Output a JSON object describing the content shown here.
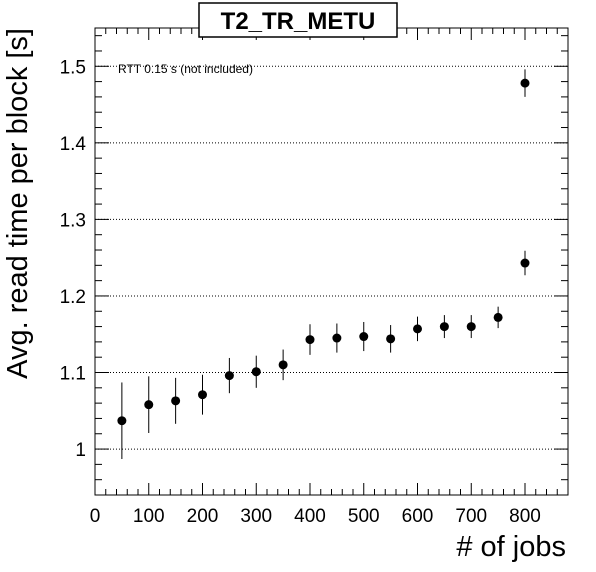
{
  "chart_data": {
    "type": "scatter",
    "title": "T2_TR_METU",
    "xlabel": "# of jobs",
    "ylabel": "Avg. read time per block [s]",
    "annotation": "RTT 0.15 s (not included)",
    "xlim": [
      0,
      880
    ],
    "ylim": [
      0.94,
      1.55
    ],
    "x_ticks": [
      0,
      100,
      200,
      300,
      400,
      500,
      600,
      700,
      800
    ],
    "y_ticks": [
      1.0,
      1.1,
      1.2,
      1.3,
      1.4,
      1.5
    ],
    "y_tick_labels": [
      "1",
      "1.1",
      "1.2",
      "1.3",
      "1.4",
      "1.5"
    ],
    "grid": "horizontal dotted",
    "series": [
      {
        "x": [
          50,
          100,
          150,
          200,
          250,
          300,
          350,
          400,
          450,
          500,
          550,
          600,
          650,
          700,
          750,
          800,
          800
        ],
        "y": [
          1.037,
          1.058,
          1.063,
          1.071,
          1.096,
          1.101,
          1.11,
          1.143,
          1.145,
          1.147,
          1.144,
          1.157,
          1.16,
          1.16,
          1.172,
          1.243,
          1.478
        ],
        "y_err": [
          0.05,
          0.037,
          0.03,
          0.026,
          0.023,
          0.021,
          0.02,
          0.02,
          0.019,
          0.019,
          0.018,
          0.016,
          0.015,
          0.015,
          0.014,
          0.016,
          0.018
        ]
      }
    ],
    "colors": {
      "marker": "#000000",
      "grid": "#000000",
      "background": "#ffffff"
    }
  }
}
